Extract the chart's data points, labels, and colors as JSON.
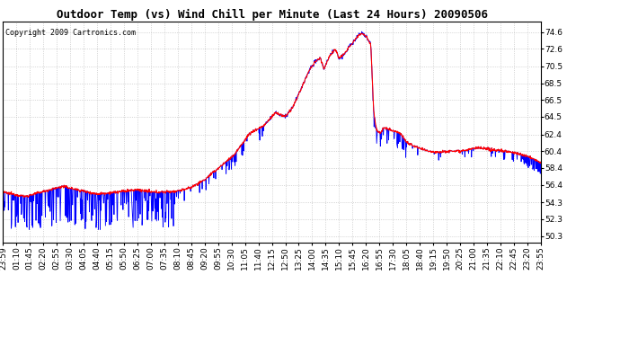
{
  "title": "Outdoor Temp (vs) Wind Chill per Minute (Last 24 Hours) 20090506",
  "copyright": "Copyright 2009 Cartronics.com",
  "y_min": 49.5,
  "y_max": 75.8,
  "yticks": [
    50.3,
    52.3,
    54.3,
    56.4,
    58.4,
    60.4,
    62.4,
    64.5,
    66.5,
    68.5,
    70.5,
    72.6,
    74.6
  ],
  "x_labels": [
    "23:59",
    "01:10",
    "01:45",
    "02:20",
    "02:55",
    "03:30",
    "04:05",
    "04:40",
    "05:15",
    "05:50",
    "06:25",
    "07:00",
    "07:35",
    "08:10",
    "08:45",
    "09:20",
    "09:55",
    "10:30",
    "11:05",
    "11:40",
    "12:15",
    "12:50",
    "13:25",
    "14:00",
    "14:35",
    "15:10",
    "15:45",
    "16:20",
    "16:55",
    "17:30",
    "18:05",
    "18:40",
    "19:15",
    "19:50",
    "20:25",
    "21:00",
    "21:35",
    "22:10",
    "22:45",
    "23:20",
    "23:55"
  ],
  "background_color": "#ffffff",
  "plot_background": "#ffffff",
  "red_color": "#ff0000",
  "blue_color": "#0000ff",
  "grid_color": "#b0b0b0",
  "title_fontsize": 9,
  "copyright_fontsize": 6,
  "tick_fontsize": 6.5
}
